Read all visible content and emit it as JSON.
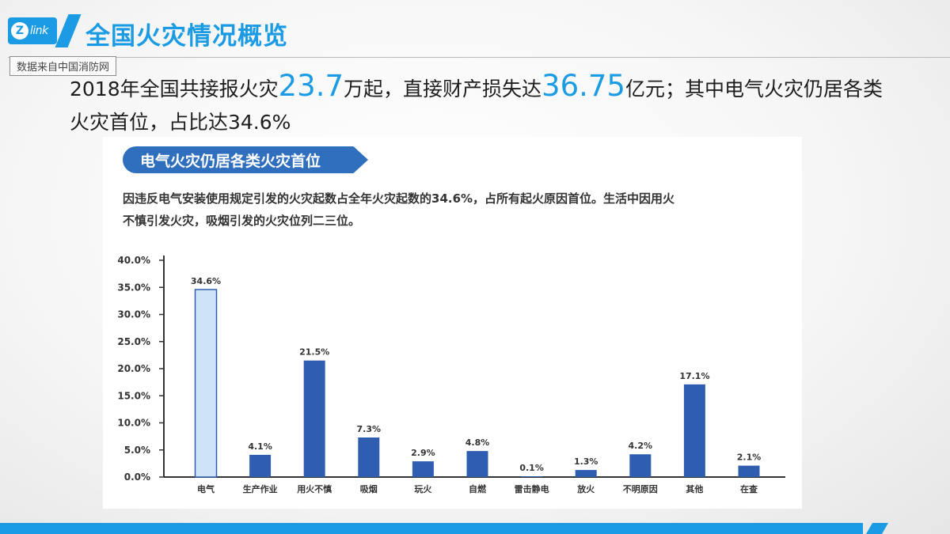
{
  "header": {
    "logo_letter": "Z",
    "logo_text": "link",
    "title": "全国火灾情况概览",
    "source_note": "数据来自中国消防网"
  },
  "headline": {
    "part1": "2018年全国共接报火灾",
    "num1": "23.7",
    "part2": "万起，直接财产损失达",
    "num2": "36.75",
    "part3": "亿元；其中电气火灾仍居各类火灾首位，占比达34.6%"
  },
  "figure": {
    "banner": "电气火灾仍居各类火灾首位",
    "description": "因违反电气安装使用规定引发的火灾起数占全年火灾起数的34.6%，占所有起火原因首位。生活中因用火不慎引发火灾，吸烟引发的火灾位列二三位。"
  },
  "colors": {
    "accent": "#1a9be3",
    "bar": "#2f5eb0",
    "bar_highlight_fill": "#cfe3f6",
    "bar_highlight_stroke": "#2f5eb0"
  },
  "chart_data": {
    "type": "bar",
    "categories": [
      "电气",
      "生产作业",
      "用火不慎",
      "吸烟",
      "玩火",
      "自燃",
      "雷击静电",
      "放火",
      "不明原因",
      "其他",
      "在查"
    ],
    "values": [
      34.6,
      4.1,
      21.5,
      7.3,
      2.9,
      4.8,
      0.1,
      1.3,
      4.2,
      17.1,
      2.1
    ],
    "data_labels": [
      "34.6%",
      "4.1%",
      "21.5%",
      "7.3%",
      "2.9%",
      "4.8%",
      "0.1%",
      "1.3%",
      "4.2%",
      "17.1%",
      "2.1%"
    ],
    "highlight_index": 0,
    "ylim": [
      0,
      40
    ],
    "yticks": [
      "0.0%",
      "5.0%",
      "10.0%",
      "15.0%",
      "20.0%",
      "25.0%",
      "30.0%",
      "35.0%",
      "40.0%"
    ],
    "title": "",
    "xlabel": "",
    "ylabel": ""
  }
}
